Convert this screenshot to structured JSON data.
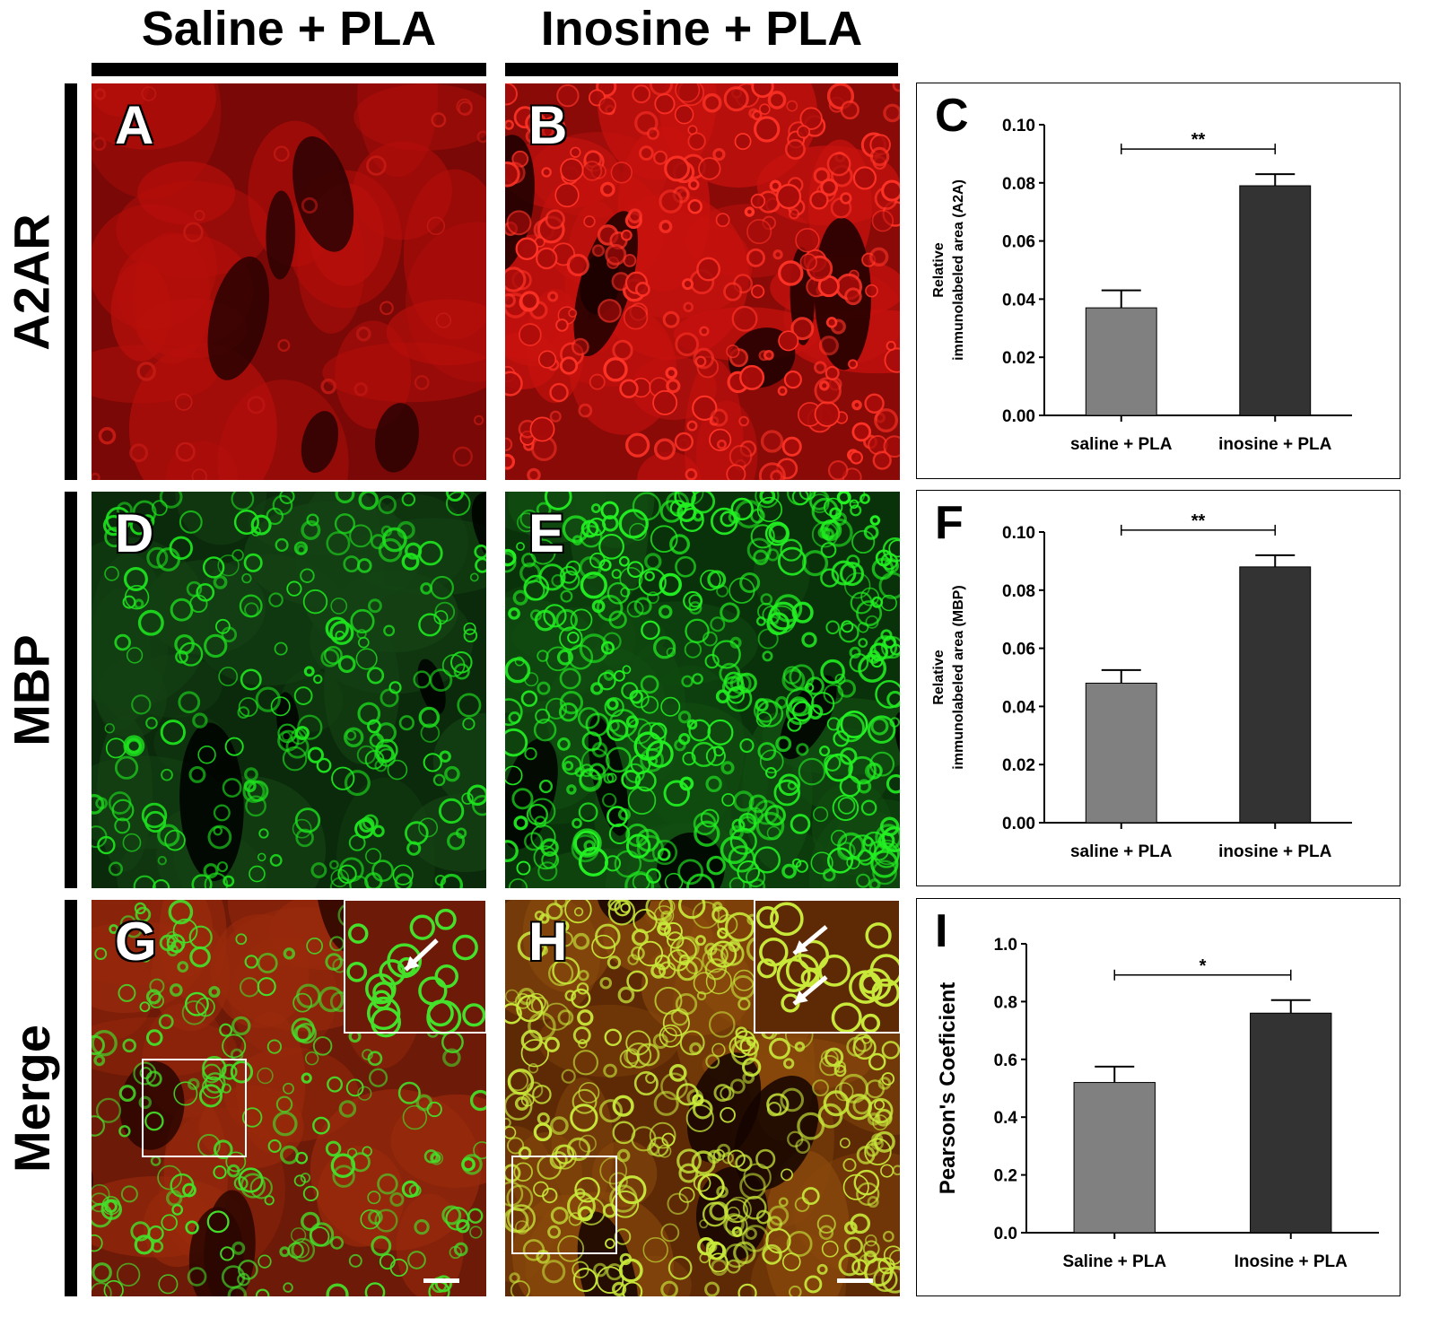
{
  "columns": [
    "Saline + PLA",
    "Inosine + PLA"
  ],
  "rows": [
    "A2AR",
    "MBP",
    "Merge"
  ],
  "panel_labels": [
    "A",
    "B",
    "D",
    "E",
    "G",
    "H"
  ],
  "colors": {
    "red_stain": "#b80f0b",
    "green_stain": "#1ee21e",
    "bar_saline": "#808080",
    "bar_inosine": "#333333"
  },
  "chart_data": [
    {
      "panel": "C",
      "type": "bar",
      "categories": [
        "saline + PLA",
        "inosine + PLA"
      ],
      "values": [
        0.037,
        0.079
      ],
      "errors": [
        0.006,
        0.004
      ],
      "ylabel": [
        "Relative",
        "immunolabeled area (A2A)"
      ],
      "ylim": [
        0,
        0.1
      ],
      "yticks": [
        "0.00",
        "0.02",
        "0.04",
        "0.06",
        "0.08",
        "0.10"
      ],
      "significance": "**"
    },
    {
      "panel": "F",
      "type": "bar",
      "categories": [
        "saline + PLA",
        "inosine + PLA"
      ],
      "values": [
        0.048,
        0.088
      ],
      "errors": [
        0.0045,
        0.004
      ],
      "ylabel": [
        "Relative",
        "immunolabeled area (MBP)"
      ],
      "ylim": [
        0,
        0.1
      ],
      "yticks": [
        "0.00",
        "0.02",
        "0.04",
        "0.06",
        "0.08",
        "0.10"
      ],
      "significance": "**"
    },
    {
      "panel": "I",
      "type": "bar",
      "categories": [
        "Saline + PLA",
        "Inosine + PLA"
      ],
      "values": [
        0.52,
        0.76
      ],
      "errors": [
        0.055,
        0.045
      ],
      "ylabel": [
        "Pearson's Coeficient"
      ],
      "ylim": [
        0,
        1.0
      ],
      "yticks": [
        "0.0",
        "0.2",
        "0.4",
        "0.6",
        "0.8",
        "1.0"
      ],
      "significance": "*"
    }
  ]
}
